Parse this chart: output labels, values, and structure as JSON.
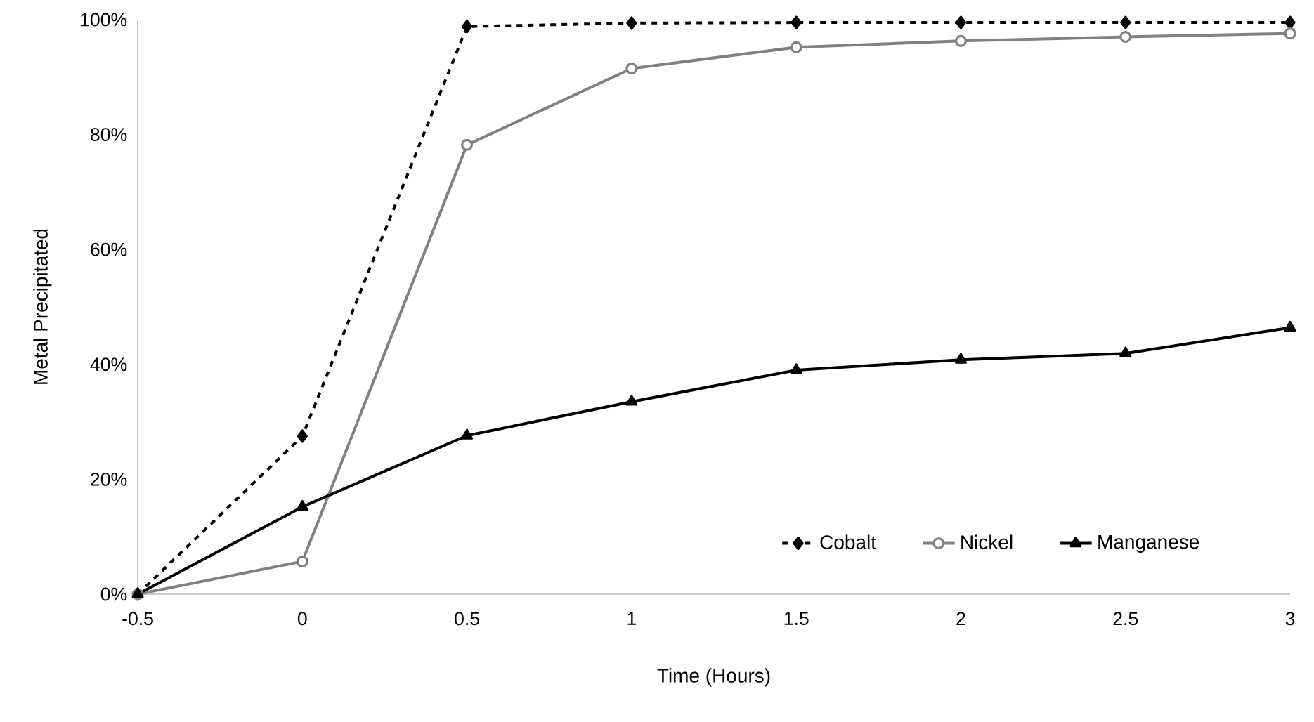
{
  "chart_data": {
    "type": "line",
    "xlabel": "Time (Hours)",
    "ylabel": "Metal Precipitated",
    "x": [
      -0.5,
      0,
      0.5,
      1,
      1.5,
      2,
      2.5,
      3
    ],
    "series": [
      {
        "name": "Cobalt",
        "color": "#000000",
        "marker": "diamond",
        "line_style": "dashed",
        "values": [
          0,
          27.5,
          98.8,
          99.4,
          99.5,
          99.5,
          99.5,
          99.5
        ]
      },
      {
        "name": "Nickel",
        "color": "#808080",
        "marker": "circle",
        "line_style": "solid",
        "values": [
          0,
          5.7,
          78.2,
          91.5,
          95.2,
          96.3,
          97.0,
          97.6
        ]
      },
      {
        "name": "Manganese",
        "color": "#000000",
        "marker": "triangle",
        "line_style": "solid",
        "values": [
          0,
          15.2,
          27.6,
          33.5,
          39.0,
          40.8,
          41.9,
          46.4
        ]
      }
    ],
    "xlim": [
      -0.5,
      3
    ],
    "xticks": [
      -0.5,
      0,
      0.5,
      1,
      1.5,
      2,
      2.5,
      3
    ],
    "ylim": [
      0,
      100
    ],
    "yticks": [
      {
        "value": 0,
        "label": "0%"
      },
      {
        "value": 20,
        "label": "20%"
      },
      {
        "value": 40,
        "label": "40%"
      },
      {
        "value": 60,
        "label": "60%"
      },
      {
        "value": 80,
        "label": "80%"
      },
      {
        "value": 100,
        "label": "100%"
      }
    ],
    "grid": false,
    "legend": "bottom right"
  }
}
